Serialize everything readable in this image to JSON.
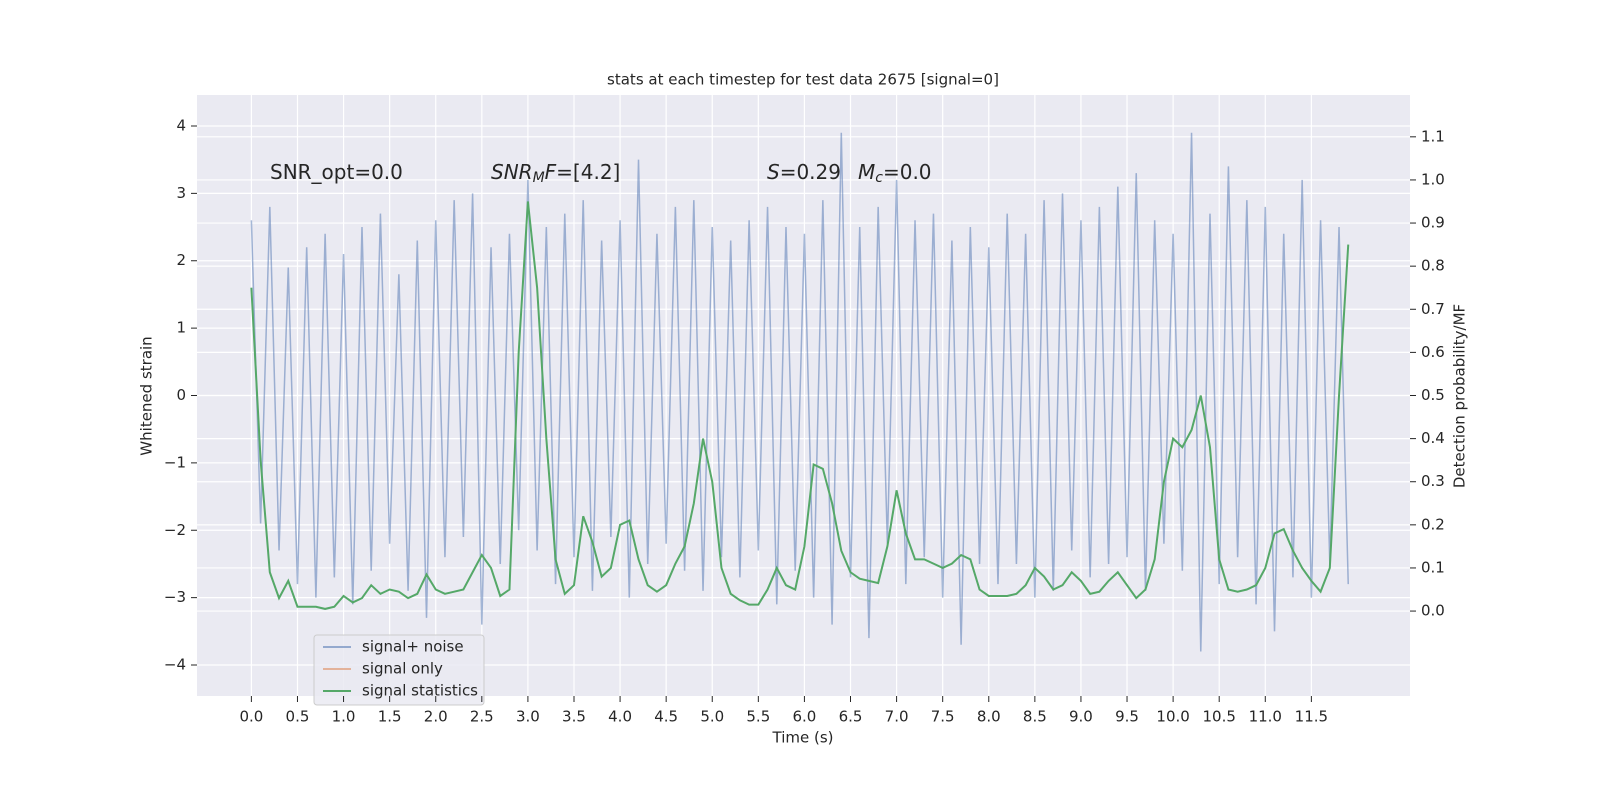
{
  "chart_data": {
    "type": "line",
    "title": "stats at each timestep for test data 2675 [signal=0]",
    "xlabel": "Time (s)",
    "ylabel": "Whitened strain",
    "y2label": "Detection probability/MF",
    "annotations": [
      [
        "SNR_opt=0.0"
      ],
      [
        "SNR",
        "M",
        "F",
        "=[4.2]"
      ],
      [
        "S",
        "=0.29"
      ],
      [
        "M",
        "c",
        "=0.0"
      ]
    ],
    "x": [
      0,
      0.1,
      0.2,
      0.3,
      0.4,
      0.5,
      0.6,
      0.7,
      0.8,
      0.9,
      1,
      1.1,
      1.2,
      1.3,
      1.4,
      1.5,
      1.6,
      1.7,
      1.8,
      1.9,
      2,
      2.1,
      2.2,
      2.3,
      2.4,
      2.5,
      2.6,
      2.7,
      2.8,
      2.9,
      3,
      3.1,
      3.2,
      3.3,
      3.4,
      3.5,
      3.6,
      3.7,
      3.8,
      3.9,
      4,
      4.1,
      4.2,
      4.3,
      4.4,
      4.5,
      4.6,
      4.7,
      4.8,
      4.9,
      5,
      5.1,
      5.2,
      5.3,
      5.4,
      5.5,
      5.6,
      5.7,
      5.8,
      5.9,
      6,
      6.1,
      6.2,
      6.3,
      6.4,
      6.5,
      6.6,
      6.7,
      6.8,
      6.9,
      7,
      7.1,
      7.2,
      7.3,
      7.4,
      7.5,
      7.6,
      7.7,
      7.8,
      7.9,
      8,
      8.1,
      8.2,
      8.3,
      8.4,
      8.5,
      8.6,
      8.7,
      8.8,
      8.9,
      9,
      9.1,
      9.2,
      9.3,
      9.4,
      9.5,
      9.6,
      9.7,
      9.8,
      9.9,
      10,
      10.1,
      10.2,
      10.3,
      10.4,
      10.5,
      10.6,
      10.7,
      10.8,
      10.9,
      11,
      11.1,
      11.2,
      11.3,
      11.4,
      11.5,
      11.6,
      11.7,
      11.8,
      11.9
    ],
    "series": [
      {
        "name": "signal+ noise",
        "color": "#4c72b0",
        "values": [
          2.6,
          -1.9,
          2.8,
          -2.3,
          1.9,
          -2.8,
          2.2,
          -3.0,
          2.4,
          -2.7,
          2.1,
          -3.1,
          2.5,
          -2.6,
          2.7,
          -2.2,
          1.8,
          -2.9,
          2.3,
          -3.3,
          2.6,
          -2.4,
          2.9,
          -2.1,
          3.0,
          -3.4,
          2.2,
          -2.5,
          2.4,
          -2.0,
          3.2,
          -2.3,
          2.5,
          -2.8,
          2.7,
          -2.4,
          2.9,
          -2.9,
          2.3,
          -2.1,
          2.6,
          -3.0,
          3.5,
          -2.5,
          2.4,
          -2.2,
          2.8,
          -2.6,
          2.9,
          -2.9,
          2.5,
          -2.4,
          2.3,
          -2.7,
          2.6,
          -2.3,
          2.8,
          -3.1,
          2.5,
          -2.6,
          2.4,
          -3.0,
          2.9,
          -3.4,
          3.9,
          -2.7,
          2.5,
          -3.6,
          2.8,
          -2.2,
          3.2,
          -2.8,
          2.6,
          -2.4,
          2.7,
          -3.0,
          2.3,
          -3.7,
          2.5,
          -2.5,
          2.2,
          -2.8,
          2.7,
          -2.5,
          2.4,
          -3.0,
          2.9,
          -2.9,
          3.0,
          -2.3,
          2.6,
          -2.7,
          2.8,
          -2.5,
          3.1,
          -2.4,
          3.3,
          -2.9,
          2.6,
          -2.2,
          2.4,
          -2.6,
          3.9,
          -3.8,
          2.7,
          -2.8,
          3.4,
          -2.4,
          2.9,
          -3.1,
          2.8,
          -3.5,
          2.4,
          -2.7,
          3.2,
          -3.0,
          2.6,
          -2.5,
          2.5,
          -2.8
        ]
      },
      {
        "name": "signal only",
        "color": "#dd8452"
      },
      {
        "name": "signal statistics",
        "color": "#55a868",
        "axis": "y2",
        "values": [
          0.75,
          0.35,
          0.09,
          0.03,
          0.07,
          0.01,
          0.01,
          0.01,
          0.005,
          0.01,
          0.035,
          0.02,
          0.03,
          0.06,
          0.04,
          0.05,
          0.045,
          0.03,
          0.04,
          0.085,
          0.05,
          0.04,
          0.045,
          0.05,
          0.09,
          0.13,
          0.1,
          0.035,
          0.05,
          0.6,
          0.95,
          0.75,
          0.4,
          0.12,
          0.04,
          0.06,
          0.22,
          0.16,
          0.08,
          0.1,
          0.2,
          0.21,
          0.12,
          0.06,
          0.045,
          0.06,
          0.11,
          0.15,
          0.25,
          0.4,
          0.3,
          0.1,
          0.04,
          0.025,
          0.015,
          0.015,
          0.05,
          0.1,
          0.06,
          0.05,
          0.15,
          0.34,
          0.33,
          0.25,
          0.14,
          0.09,
          0.075,
          0.07,
          0.065,
          0.15,
          0.28,
          0.18,
          0.12,
          0.12,
          0.11,
          0.1,
          0.11,
          0.13,
          0.12,
          0.05,
          0.035,
          0.035,
          0.035,
          0.04,
          0.06,
          0.1,
          0.08,
          0.05,
          0.06,
          0.09,
          0.07,
          0.04,
          0.045,
          0.07,
          0.09,
          0.06,
          0.03,
          0.05,
          0.12,
          0.3,
          0.4,
          0.38,
          0.42,
          0.5,
          0.38,
          0.12,
          0.05,
          0.045,
          0.05,
          0.06,
          0.1,
          0.18,
          0.19,
          0.14,
          0.1,
          0.07,
          0.045,
          0.1,
          0.5,
          0.85
        ]
      }
    ],
    "xlim": [
      -0.59,
      12.57
    ],
    "xticks": [
      {
        "value": 0,
        "label": "0.0"
      },
      0.5,
      {
        "value": 1,
        "label": "1.0"
      },
      1.5,
      {
        "value": 2,
        "label": "2.0"
      },
      2.5,
      {
        "value": 3,
        "label": "3.0"
      },
      3.5,
      {
        "value": 4,
        "label": "4.0"
      },
      4.5,
      {
        "value": 5,
        "label": "5.0"
      },
      5.5,
      {
        "value": 6,
        "label": "6.0"
      },
      6.5,
      {
        "value": 7,
        "label": "7.0"
      },
      7.5,
      {
        "value": 8,
        "label": "8.0"
      },
      8.5,
      {
        "value": 9,
        "label": "9.0"
      },
      9.5,
      {
        "value": 10,
        "label": "10.0"
      },
      10.5,
      {
        "value": 11,
        "label": "11.0"
      },
      11.5
    ],
    "ylim": [
      -4.46,
      4.46
    ],
    "yticks": [
      {
        "value": -4,
        "label": "−4"
      },
      {
        "value": -3,
        "label": "−3"
      },
      {
        "value": -2,
        "label": "−2"
      },
      {
        "value": -1,
        "label": "−1"
      },
      0,
      1,
      2,
      3,
      4
    ],
    "y2lim": [
      -0.197,
      1.197
    ],
    "y2ticks": [
      {
        "value": 0,
        "label": "0.0"
      },
      0.1,
      0.2,
      0.3,
      0.4,
      0.5,
      0.6,
      0.7,
      0.8,
      0.9,
      {
        "value": 1,
        "label": "1.0"
      },
      1.1
    ],
    "grid": true,
    "legend": "lower left"
  }
}
